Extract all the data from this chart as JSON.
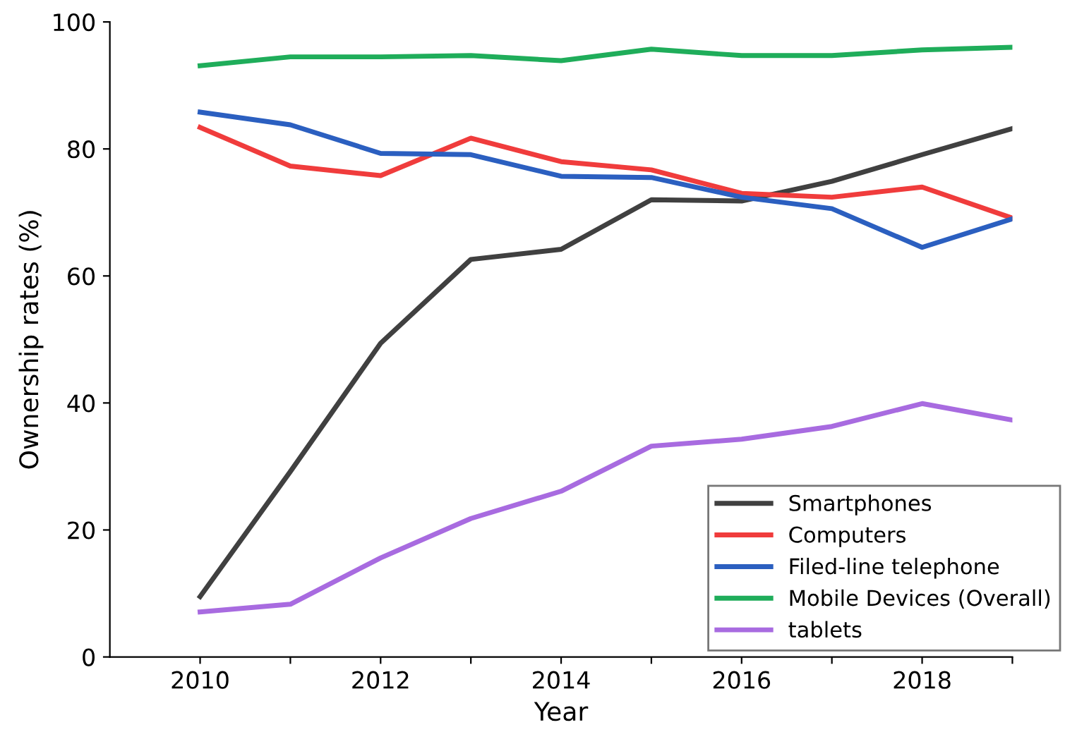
{
  "chart_data": {
    "type": "line",
    "xlabel": "Year",
    "ylabel": "Ownership rates (%)",
    "x": [
      2010,
      2011,
      2012,
      2013,
      2014,
      2015,
      2016,
      2017,
      2018,
      2019
    ],
    "xlim": [
      2009,
      2019
    ],
    "xticks": [
      {
        "value": 2010,
        "label": "2010"
      },
      {
        "value": 2011,
        "label": null
      },
      {
        "value": 2012,
        "label": "2012"
      },
      {
        "value": 2013,
        "label": null
      },
      {
        "value": 2014,
        "label": "2014"
      },
      {
        "value": 2015,
        "label": null
      },
      {
        "value": 2016,
        "label": "2016"
      },
      {
        "value": 2017,
        "label": null
      },
      {
        "value": 2018,
        "label": "2018"
      },
      {
        "value": 2019,
        "label": null
      }
    ],
    "ylim": [
      0,
      100
    ],
    "yticks": [
      0,
      20,
      40,
      60,
      80,
      100
    ],
    "grid": false,
    "legend": "bottom right",
    "marker": "none",
    "line_style": "solid",
    "series": [
      {
        "name": "Smartphones",
        "color": "#404040",
        "values": [
          9.5,
          29.2,
          49.4,
          62.6,
          64.2,
          72.0,
          71.8,
          74.9,
          79.1,
          83.2
        ]
      },
      {
        "name": "Computers",
        "color": "#f03c3c",
        "values": [
          83.4,
          77.3,
          75.8,
          81.7,
          78.0,
          76.7,
          73.0,
          72.4,
          74.0,
          69.1
        ]
      },
      {
        "name": "Filed-line telephone",
        "color": "#2b5fc0",
        "values": [
          85.8,
          83.8,
          79.3,
          79.1,
          75.7,
          75.5,
          72.4,
          70.6,
          64.5,
          69.0
        ]
      },
      {
        "name": "Mobile Devices (Overall)",
        "color": "#1fad5a",
        "values": [
          93.1,
          94.5,
          94.5,
          94.7,
          93.9,
          95.7,
          94.7,
          94.7,
          95.6,
          96.0
        ]
      },
      {
        "name": "tablets",
        "color": "#a86be0",
        "values": [
          7.1,
          8.3,
          15.6,
          21.8,
          26.1,
          33.2,
          34.3,
          36.3,
          39.9,
          37.3
        ]
      }
    ]
  }
}
